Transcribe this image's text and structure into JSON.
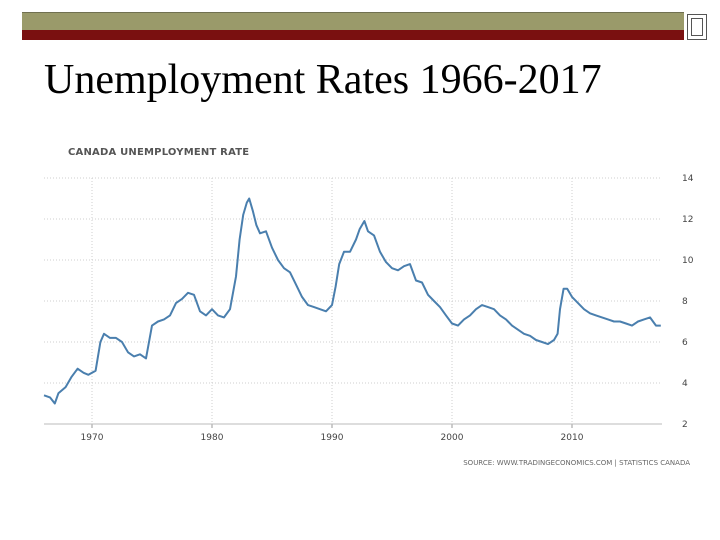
{
  "slide": {
    "title": "Unemployment Rates 1966-2017"
  },
  "colors": {
    "accent_olive": "#9a9a6a",
    "accent_red": "#7a1010",
    "series_line": "#4a7fae"
  },
  "chart_data": {
    "type": "line",
    "title": "CANADA UNEMPLOYMENT RATE",
    "source": "SOURCE: WWW.TRADINGECONOMICS.COM | STATISTICS CANADA",
    "xlabel": "",
    "ylabel": "",
    "xlim": [
      1966,
      2017.5
    ],
    "ylim": [
      2,
      14
    ],
    "x_ticks": [
      1970,
      1980,
      1990,
      2000,
      2010
    ],
    "y_ticks": [
      2,
      4,
      6,
      8,
      10,
      12,
      14
    ],
    "y_axis_side": "right",
    "grid": "horizontal-dotted",
    "legend": "none",
    "series": [
      {
        "x": [
          1966.0,
          1966.5,
          1966.9,
          1967.2,
          1967.8,
          1968.3,
          1968.8,
          1969.3,
          1969.7,
          1970.3,
          1970.7,
          1971.0,
          1971.5,
          1972.0,
          1972.5,
          1973.0,
          1973.5,
          1974.0,
          1974.5,
          1975.0,
          1975.5,
          1976.0,
          1976.5,
          1977.0,
          1977.5,
          1978.0,
          1978.5,
          1979.0,
          1979.5,
          1980.0,
          1980.5,
          1981.0,
          1981.5,
          1982.0,
          1982.3,
          1982.6,
          1982.9,
          1983.1,
          1983.4,
          1983.7,
          1984.0,
          1984.5,
          1985.0,
          1985.5,
          1986.0,
          1986.5,
          1987.0,
          1987.5,
          1988.0,
          1988.5,
          1989.0,
          1989.5,
          1990.0,
          1990.3,
          1990.6,
          1991.0,
          1991.5,
          1992.0,
          1992.3,
          1992.7,
          1993.0,
          1993.5,
          1994.0,
          1994.5,
          1995.0,
          1995.5,
          1996.0,
          1996.5,
          1997.0,
          1997.5,
          1998.0,
          1998.5,
          1999.0,
          1999.5,
          2000.0,
          2000.5,
          2001.0,
          2001.5,
          2002.0,
          2002.5,
          2003.0,
          2003.5,
          2004.0,
          2004.5,
          2005.0,
          2005.5,
          2006.0,
          2006.5,
          2007.0,
          2007.5,
          2008.0,
          2008.5,
          2008.8,
          2009.0,
          2009.3,
          2009.6,
          2010.0,
          2010.5,
          2011.0,
          2011.5,
          2012.0,
          2012.5,
          2013.0,
          2013.5,
          2014.0,
          2014.5,
          2015.0,
          2015.5,
          2016.0,
          2016.5,
          2017.0,
          2017.4
        ],
        "values": [
          3.4,
          3.3,
          3.0,
          3.5,
          3.8,
          4.3,
          4.7,
          4.5,
          4.4,
          4.6,
          6.0,
          6.4,
          6.2,
          6.2,
          6.0,
          5.5,
          5.3,
          5.4,
          5.2,
          6.8,
          7.0,
          7.1,
          7.3,
          7.9,
          8.1,
          8.4,
          8.3,
          7.5,
          7.3,
          7.6,
          7.3,
          7.2,
          7.6,
          9.2,
          11.0,
          12.2,
          12.8,
          13.0,
          12.4,
          11.7,
          11.3,
          11.4,
          10.6,
          10.0,
          9.6,
          9.4,
          8.8,
          8.2,
          7.8,
          7.7,
          7.6,
          7.5,
          7.8,
          8.7,
          9.8,
          10.4,
          10.4,
          11.0,
          11.5,
          11.9,
          11.4,
          11.2,
          10.4,
          9.9,
          9.6,
          9.5,
          9.7,
          9.8,
          9.0,
          8.9,
          8.3,
          8.0,
          7.7,
          7.3,
          6.9,
          6.8,
          7.1,
          7.3,
          7.6,
          7.8,
          7.7,
          7.6,
          7.3,
          7.1,
          6.8,
          6.6,
          6.4,
          6.3,
          6.1,
          6.0,
          5.9,
          6.1,
          6.4,
          7.6,
          8.6,
          8.6,
          8.2,
          7.9,
          7.6,
          7.4,
          7.3,
          7.2,
          7.1,
          7.0,
          7.0,
          6.9,
          6.8,
          7.0,
          7.1,
          7.2,
          6.8,
          6.8
        ]
      }
    ]
  }
}
